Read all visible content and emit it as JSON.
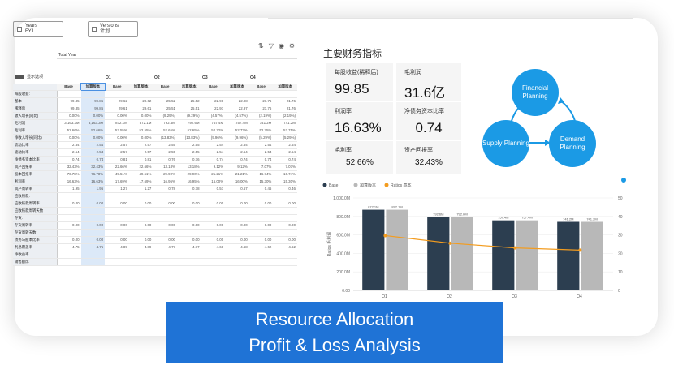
{
  "filters": {
    "years": {
      "label": "Years",
      "value": "FY1"
    },
    "versions": {
      "label": "Versions",
      "value": "计划"
    }
  },
  "toolbar": {
    "icons": [
      "sort-icon",
      "filter-icon",
      "eye-icon",
      "settings-icon"
    ]
  },
  "grid": {
    "total_year": "Total Year",
    "toggle_label": "显示选项",
    "periods": [
      "Q1",
      "Q2",
      "Q3",
      "Q4"
    ],
    "subheads": [
      "Base",
      "加算版本",
      "Base",
      "加算版本",
      "Base",
      "加算版本",
      "Base",
      "加算版本",
      "Base",
      "加算版本"
    ],
    "rows": [
      {
        "label": "每股收益:",
        "values": [
          "",
          "",
          "",
          "",
          "",
          "",
          "",
          "",
          "",
          ""
        ]
      },
      {
        "label": "基本",
        "values": [
          "99.85",
          "99.85",
          "29.62",
          "29.62",
          "25.52",
          "25.52",
          "22.98",
          "22.98",
          "21.76",
          "21.76"
        ]
      },
      {
        "label": "稀释后",
        "values": [
          "99.85",
          "99.85",
          "29.61",
          "29.61",
          "25.51",
          "25.51",
          "22.97",
          "22.97",
          "21.76",
          "21.76"
        ]
      },
      {
        "label": "收入增长(同比)",
        "values": [
          "0.00%",
          "0.00%",
          "0.00%",
          "0.00%",
          "(9.29%)",
          "(9.29%)",
          "(4.57%)",
          "(4.57%)",
          "(2.19%)",
          "(2.19%)"
        ]
      },
      {
        "label": "毛利润",
        "values": [
          "3,163.3M",
          "3,163.3M",
          "872.1M",
          "872.1M",
          "792.6M",
          "792.6M",
          "757.4M",
          "757.4M",
          "741.2M",
          "741.2M"
        ]
      },
      {
        "label": "毛利率",
        "values": [
          "52.66%",
          "52.66%",
          "52.55%",
          "52.55%",
          "52.65%",
          "52.65%",
          "52.72%",
          "52.72%",
          "52.75%",
          "52.75%"
        ]
      },
      {
        "label": "净收入增长(同比)",
        "values": [
          "0.00%",
          "0.00%",
          "0.00%",
          "0.00%",
          "(13.83%)",
          "(13.83%)",
          "(9.96%)",
          "(9.96%)",
          "(5.29%)",
          "(5.29%)"
        ]
      },
      {
        "label": "流动比率",
        "values": [
          "2.54",
          "2.54",
          "2.57",
          "2.57",
          "2.55",
          "2.55",
          "2.54",
          "2.54",
          "2.54",
          "2.54"
        ]
      },
      {
        "label": "速动比率",
        "values": [
          "2.54",
          "2.54",
          "2.57",
          "2.57",
          "2.55",
          "2.55",
          "2.54",
          "2.54",
          "2.54",
          "2.54"
        ]
      },
      {
        "label": "净债务资本比率",
        "values": [
          "0.74",
          "0.74",
          "0.81",
          "0.81",
          "0.76",
          "0.76",
          "0.74",
          "0.74",
          "0.74",
          "0.74"
        ]
      },
      {
        "label": "资产回报率",
        "values": [
          "32.43%",
          "32.43%",
          "22.66%",
          "22.66%",
          "13.18%",
          "13.18%",
          "9.12%",
          "9.12%",
          "7.07%",
          "7.07%"
        ]
      },
      {
        "label": "股本回报率",
        "values": [
          "76.78%",
          "76.78%",
          "49.51%",
          "49.51%",
          "29.90%",
          "29.90%",
          "21.21%",
          "21.21%",
          "16.74%",
          "16.74%"
        ]
      },
      {
        "label": "利润率",
        "values": [
          "16.63%",
          "16.63%",
          "17.69%",
          "17.69%",
          "16.95%",
          "16.95%",
          "16.00%",
          "16.00%",
          "15.30%",
          "15.30%"
        ]
      },
      {
        "label": "资产周转率",
        "values": [
          "1.95",
          "1.95",
          "1.27",
          "1.27",
          "0.78",
          "0.78",
          "0.57",
          "0.57",
          "0.46",
          "0.46"
        ]
      },
      {
        "label": "应收账款:",
        "values": [
          "",
          "",
          "",
          "",
          "",
          "",
          "",
          "",
          "",
          ""
        ]
      },
      {
        "label": "应收账款周转率",
        "values": [
          "0.00",
          "0.00",
          "0.00",
          "0.00",
          "0.00",
          "0.00",
          "0.00",
          "0.00",
          "0.00",
          "0.00"
        ]
      },
      {
        "label": "应收账款周转天数",
        "values": [
          "",
          "",
          "",
          "",
          "",
          "",
          "",
          "",
          "",
          ""
        ]
      },
      {
        "label": "存货:",
        "values": [
          "",
          "",
          "",
          "",
          "",
          "",
          "",
          "",
          "",
          ""
        ]
      },
      {
        "label": "存货周转率",
        "values": [
          "0.00",
          "0.00",
          "0.00",
          "0.00",
          "0.00",
          "0.00",
          "0.00",
          "0.00",
          "0.00",
          "0.00"
        ]
      },
      {
        "label": "存货周转天数",
        "values": [
          "",
          "",
          "",
          "",
          "",
          "",
          "",
          "",
          "",
          ""
        ]
      },
      {
        "label": "债务与股本比率",
        "values": [
          "0.00",
          "0.00",
          "0.00",
          "0.00",
          "0.00",
          "0.00",
          "0.00",
          "0.00",
          "0.00",
          "0.00"
        ]
      },
      {
        "label": "利息覆盖率",
        "values": [
          "4.75",
          "4.75",
          "4.89",
          "4.89",
          "4.77",
          "4.77",
          "4.68",
          "4.68",
          "4.62",
          "4.62"
        ]
      },
      {
        "label": "净收益率",
        "values": [
          "",
          "",
          "",
          "",
          "",
          "",
          "",
          "",
          "",
          ""
        ]
      },
      {
        "label": "销售额比",
        "values": [
          "",
          "",
          "",
          "",
          "",
          "",
          "",
          "",
          "",
          ""
        ]
      }
    ]
  },
  "kpi": {
    "title": "主要财务指标",
    "eps": {
      "label": "每股收益(稀释后)",
      "value": "99.85"
    },
    "gross_profit": {
      "label": "毛利润",
      "value": "31.6亿"
    },
    "profit_margin": {
      "label": "利润率",
      "value": "16.63%"
    },
    "roa_ratio": {
      "label": "净债务资本比率",
      "value": "0.74"
    },
    "gross_margin": {
      "label": "毛利率",
      "value": "52.66%"
    },
    "asset_return": {
      "label": "资产回报率",
      "value": "32.43%"
    }
  },
  "cycle": {
    "financial": "Financial Planning",
    "supply": "Supply Planning",
    "demand": "Demand Planning",
    "color": "#1b9ae5"
  },
  "chart_data": {
    "type": "bar",
    "legend": [
      "Base",
      "加算版本",
      "Ratios 基本"
    ],
    "categories": [
      "Q1",
      "Q2",
      "Q3",
      "Q4"
    ],
    "series": [
      {
        "name": "Base",
        "values": [
          872.1,
          792.6,
          757.4,
          741.2
        ],
        "color": "#2c3e50"
      },
      {
        "name": "加算版本",
        "values": [
          872.1,
          792.6,
          757.4,
          741.2
        ],
        "color": "#b8b8b8"
      },
      {
        "name": "Ratios 基本",
        "values": [
          29.62,
          25.52,
          22.98,
          21.76
        ],
        "color": "#f39c1f",
        "axis": "right",
        "kind": "line"
      }
    ],
    "bar_labels": [
      "872.1M",
      "872.1M",
      "792.6M",
      "792.6M",
      "757.4M",
      "757.4M",
      "741.2M",
      "741.2M"
    ],
    "y_ticks": [
      "0.00",
      "200.0M",
      "400.0M",
      "600.0M",
      "800.0M",
      "1,000.0M"
    ],
    "y2_ticks": [
      "0",
      "10",
      "20",
      "30",
      "40",
      "50"
    ],
    "ylim": [
      0,
      1000
    ],
    "y2lim": [
      0,
      50
    ],
    "ylabel": "Ratios 毛利润"
  },
  "banner": {
    "line1": "Resource Allocation",
    "line2": "Profit & Loss Analysis"
  }
}
